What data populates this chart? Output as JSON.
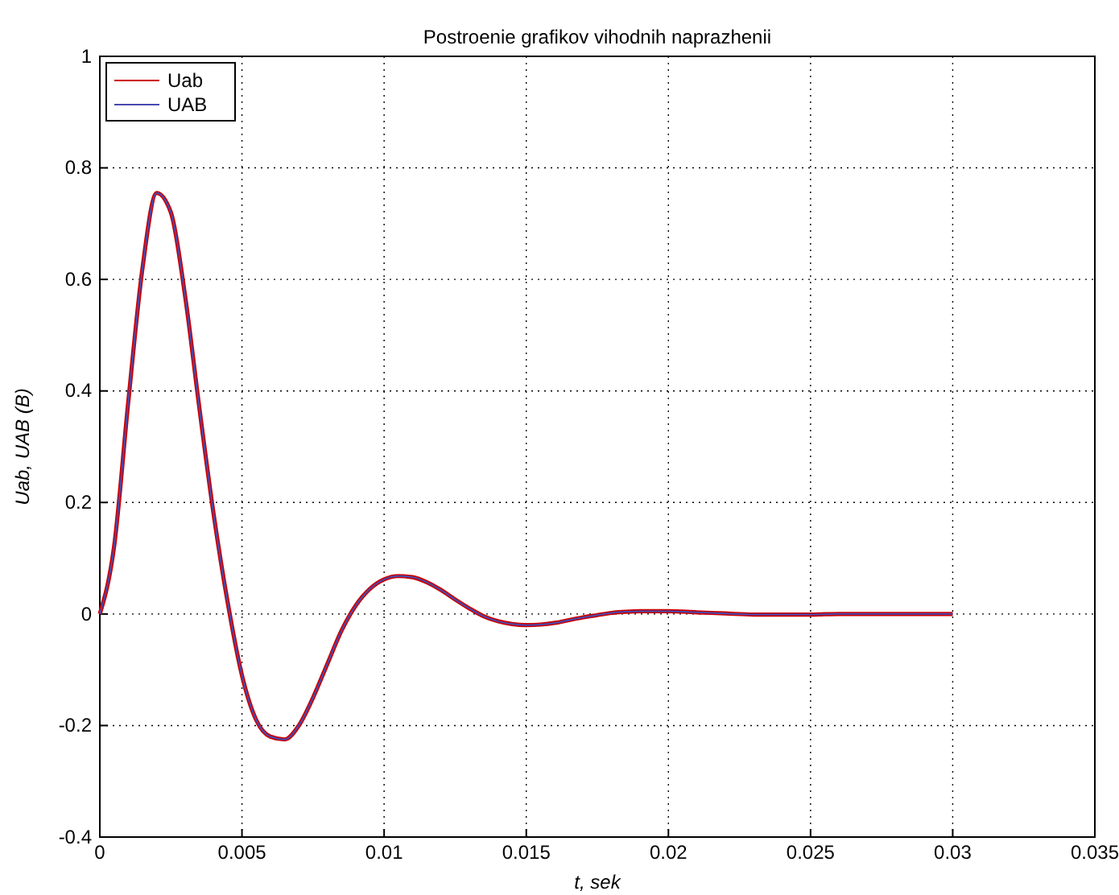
{
  "chart_data": {
    "type": "line",
    "title": "Postroenie grafikov vihodnih naprazhenii",
    "xlabel": "t, sek",
    "ylabel": "Uab, UAB (B)",
    "x": [
      0,
      0.0005,
      0.001,
      0.0015,
      0.002,
      0.0025,
      0.003,
      0.0035,
      0.004,
      0.0045,
      0.005,
      0.0055,
      0.006,
      0.0065,
      0.007,
      0.0075,
      0.008,
      0.0085,
      0.009,
      0.0095,
      0.01,
      0.0105,
      0.011,
      0.0115,
      0.012,
      0.0125,
      0.013,
      0.0135,
      0.014,
      0.0145,
      0.015,
      0.0155,
      0.016,
      0.0165,
      0.017,
      0.0175,
      0.018,
      0.0185,
      0.019,
      0.0195,
      0.02,
      0.021,
      0.022,
      0.023,
      0.024,
      0.025,
      0.026,
      0.028,
      0.03
    ],
    "series": [
      {
        "name": "Uab",
        "color": "#cc0000",
        "values": [
          0,
          0.12,
          0.38,
          0.62,
          0.755,
          0.72,
          0.57,
          0.37,
          0.18,
          0.02,
          -0.11,
          -0.19,
          -0.22,
          -0.225,
          -0.2,
          -0.15,
          -0.09,
          -0.03,
          0.015,
          0.045,
          0.062,
          0.068,
          0.066,
          0.057,
          0.043,
          0.026,
          0.01,
          -0.004,
          -0.013,
          -0.018,
          -0.02,
          -0.019,
          -0.016,
          -0.011,
          -0.006,
          -0.002,
          0.002,
          0.004,
          0.005,
          0.005,
          0.005,
          0.003,
          0.001,
          -0.001,
          -0.001,
          -0.001,
          0,
          0,
          0
        ]
      },
      {
        "name": "UAB",
        "color": "#4848b0",
        "values": [
          0,
          0.12,
          0.38,
          0.62,
          0.755,
          0.72,
          0.57,
          0.37,
          0.18,
          0.02,
          -0.11,
          -0.19,
          -0.22,
          -0.225,
          -0.2,
          -0.15,
          -0.09,
          -0.03,
          0.015,
          0.045,
          0.062,
          0.068,
          0.066,
          0.057,
          0.043,
          0.026,
          0.01,
          -0.004,
          -0.013,
          -0.018,
          -0.02,
          -0.019,
          -0.016,
          -0.011,
          -0.006,
          -0.002,
          0.002,
          0.004,
          0.005,
          0.005,
          0.005,
          0.003,
          0.001,
          -0.001,
          -0.001,
          -0.001,
          0,
          0,
          0
        ]
      }
    ],
    "xlim": [
      0,
      0.035
    ],
    "xticks": [
      0,
      0.005,
      0.01,
      0.015,
      0.02,
      0.025,
      0.03,
      0.035
    ],
    "ylim": [
      -0.4,
      1
    ],
    "yticks": [
      -0.4,
      -0.2,
      0,
      0.2,
      0.4,
      0.6,
      0.8,
      1
    ],
    "grid": true,
    "legend": "top left",
    "line_style": "solid",
    "marker": "none"
  }
}
